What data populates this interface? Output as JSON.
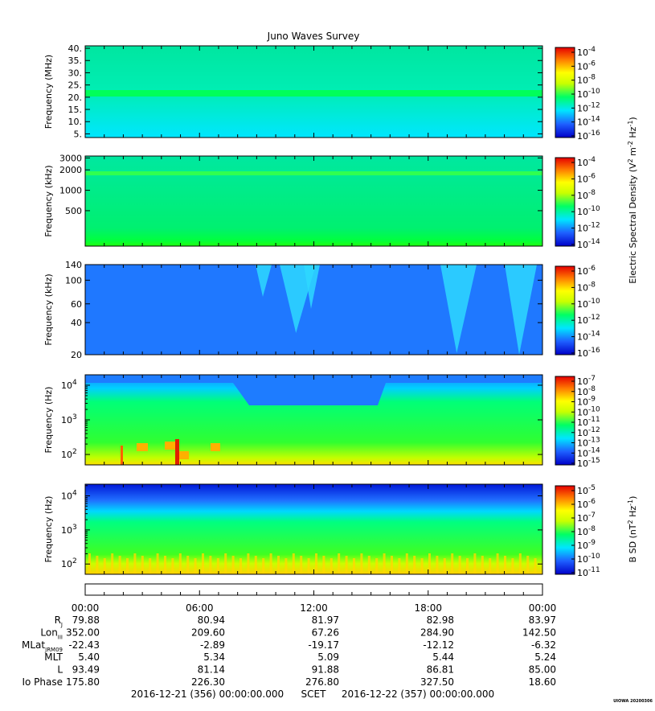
{
  "title": "Juno Waves Survey",
  "colors": {
    "background": "#ffffff",
    "axis": "#000000",
    "cmap": [
      "#0000c8",
      "#1e60ff",
      "#00e6ff",
      "#00ff64",
      "#c8ff00",
      "#ffff00",
      "#ff7f00",
      "#e60000"
    ]
  },
  "chart_data": [
    {
      "type": "heatmap",
      "ylabel": "Frequency (MHz)",
      "ylim": [
        3.5,
        41
      ],
      "yscale": "linear",
      "yticks": [
        5,
        10,
        15,
        20,
        25,
        30,
        35,
        40
      ],
      "ytick_labels": [
        "5.",
        "10.",
        "15.",
        "20.",
        "25.",
        "30.",
        "35.",
        "40."
      ],
      "colorbar": {
        "exps": [
          -4,
          -6,
          -8,
          -10,
          -12,
          -14,
          -16
        ]
      },
      "x": [
        "00:00",
        "06:00",
        "12:00",
        "18:00",
        "00:00"
      ]
    },
    {
      "type": "heatmap",
      "ylabel": "Frequency (kHz)",
      "ylim": [
        150,
        3200
      ],
      "yscale": "log",
      "yticks": [
        500,
        1000,
        2000,
        3000
      ],
      "ytick_labels": [
        "500",
        "1000",
        "2000",
        "3000"
      ],
      "colorbar": {
        "exps": [
          -4,
          -6,
          -8,
          -10,
          -12,
          -14
        ]
      },
      "x": [
        "00:00",
        "06:00",
        "12:00",
        "18:00",
        "00:00"
      ]
    },
    {
      "type": "heatmap",
      "ylabel": "Frequency (kHz)",
      "ylim": [
        20,
        140
      ],
      "yscale": "log",
      "yticks": [
        20,
        40,
        60,
        100,
        140
      ],
      "ytick_labels": [
        "20",
        "40",
        "60",
        "100",
        "140"
      ],
      "colorbar": {
        "exps": [
          -6,
          -8,
          -10,
          -12,
          -14,
          -16
        ]
      },
      "x": [
        "00:00",
        "06:00",
        "12:00",
        "18:00",
        "00:00"
      ]
    },
    {
      "type": "heatmap",
      "ylabel": "Frequency (Hz)",
      "ylim": [
        50,
        20000
      ],
      "yscale": "log",
      "ydecades": [
        2,
        3,
        4
      ],
      "colorbar": {
        "exps": [
          -7,
          -8,
          -9,
          -10,
          -11,
          -12,
          -13,
          -14,
          -15
        ]
      },
      "x": [
        "00:00",
        "06:00",
        "12:00",
        "18:00",
        "00:00"
      ]
    },
    {
      "type": "heatmap",
      "ylabel": "Frequency (Hz)",
      "ylim": [
        50,
        22000
      ],
      "yscale": "log",
      "ydecades": [
        2,
        3,
        4
      ],
      "colorbar": {
        "exps": [
          -5,
          -6,
          -7,
          -8,
          -9,
          -10,
          -11
        ]
      },
      "x": [
        "00:00",
        "06:00",
        "12:00",
        "18:00",
        "00:00"
      ]
    }
  ],
  "colorbar_labels": {
    "electric": [
      "Electric Spectral Density (V",
      "2",
      " m",
      "-2",
      " Hz",
      "-1",
      ")"
    ],
    "magnetic": [
      "B SD (nT",
      "2",
      " Hz",
      "-1",
      ")"
    ]
  },
  "time_axis": {
    "ticks": [
      "00:00",
      "06:00",
      "12:00",
      "18:00",
      "00:00"
    ]
  },
  "ephemeris": [
    {
      "label": "R",
      "sub": "J",
      "values": [
        "79.88",
        "80.94",
        "81.97",
        "82.98",
        "83.97"
      ]
    },
    {
      "label": "Lon",
      "sub": "III",
      "values": [
        "352.00",
        "209.60",
        "67.26",
        "284.90",
        "142.50"
      ]
    },
    {
      "label": "MLat",
      "sub": "JRM09",
      "values": [
        "-22.43",
        "-2.89",
        "-19.17",
        "-12.12",
        "-6.32"
      ]
    },
    {
      "label": "MLT",
      "sub": "",
      "values": [
        "5.40",
        "5.34",
        "5.09",
        "5.44",
        "5.24"
      ]
    },
    {
      "label": "L",
      "sub": "",
      "values": [
        "93.49",
        "81.14",
        "91.88",
        "86.81",
        "85.00"
      ]
    },
    {
      "label": "Io Phase",
      "sub": "",
      "values": [
        "175.80",
        "226.30",
        "276.80",
        "327.50",
        "18.60"
      ]
    }
  ],
  "footer": {
    "start": "2016-12-21 (356) 00:00:00.000",
    "scet": "SCET",
    "end": "2016-12-22 (357) 00:00:00.000"
  },
  "credit": "UIOWA 20200306"
}
